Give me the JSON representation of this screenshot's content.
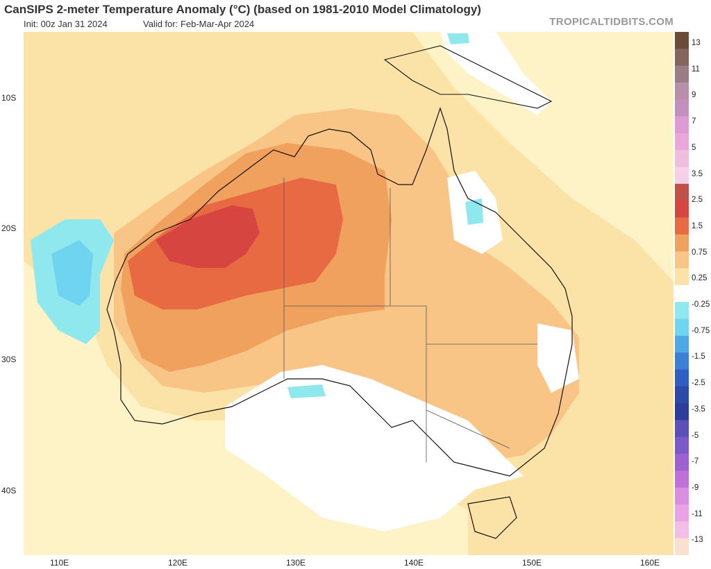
{
  "header": {
    "title": "CanSIPS 2-meter Temperature Anomaly (°C) (based on 1981-2010 Model Climatology)",
    "init": "Init: 00z Jan 31 2024",
    "valid": "Valid for: Feb-Mar-Apr 2024",
    "brand": "TROPICALTIDBITS.COM"
  },
  "axes": {
    "lat_labels": [
      "10S",
      "20S",
      "30S",
      "40S"
    ],
    "lon_labels": [
      "110E",
      "120E",
      "130E",
      "140E",
      "150E",
      "160E"
    ]
  },
  "legend": {
    "labels": [
      "13",
      "11",
      "9",
      "7",
      "5",
      "3.5",
      "2.5",
      "1.5",
      "0.75",
      "0.25",
      "-0.25",
      "-0.75",
      "-1.5",
      "-2.5",
      "-3.5",
      "-5",
      "-7",
      "-9",
      "-11",
      "-13"
    ],
    "colors": [
      "#6b4c3b",
      "#85665a",
      "#9a7d85",
      "#b78fa8",
      "#c58fbd",
      "#dc9bd2",
      "#e9a8d9",
      "#efbedf",
      "#f5d0e7",
      "#c05048",
      "#d64540",
      "#e86a43",
      "#f0a15e",
      "#f8c586",
      "#fbe2a6",
      "#ffffff",
      "#8fe8ee",
      "#6fd4ef",
      "#4fa8e6",
      "#3c7fd6",
      "#2f5fc4",
      "#2c4aa8",
      "#2f3d9a",
      "#5a50b8",
      "#7b59c8",
      "#9d62cf",
      "#c071d8",
      "#d98ee0",
      "#e9a3e2",
      "#f3bfe9",
      "#fbe0d0"
    ],
    "palette": {
      "ocean_base": "#fdf3c6",
      "warm_1": "#fbe2a6",
      "warm_2": "#f8c586",
      "warm_3": "#f0a15e",
      "warm_4": "#e86a43",
      "warm_5": "#d64540",
      "neutral": "#ffffff",
      "cool_1": "#8fe8ee",
      "cool_2": "#6fd4ef"
    }
  }
}
